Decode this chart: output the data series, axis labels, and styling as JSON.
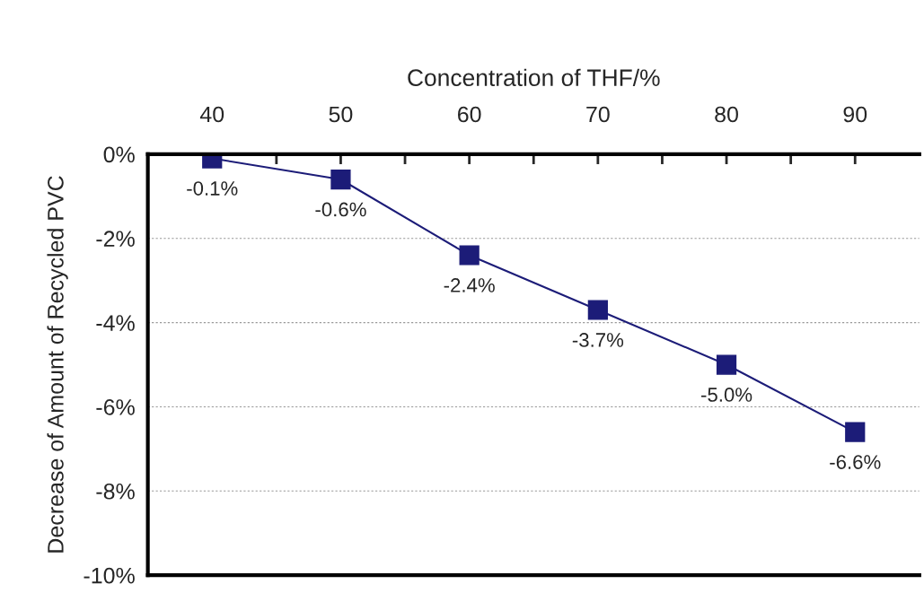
{
  "chart_data": {
    "type": "line",
    "xlabel": "Concentration of THF/%",
    "ylabel": "Decrease of Amount of Recycled PVC",
    "x": [
      40,
      50,
      60,
      70,
      80,
      90
    ],
    "series": [
      {
        "color": "#1c1c78",
        "values": [
          -0.1,
          -0.6,
          -2.4,
          -3.7,
          -5.0,
          -6.6
        ],
        "value_labels": [
          "-0.1%",
          "-0.6%",
          "-2.4%",
          "-3.7%",
          "-5.0%",
          "-6.6%"
        ]
      }
    ],
    "xlim": [
      35,
      95
    ],
    "xticks": [
      40,
      {
        "value": 45,
        "label": null
      },
      50,
      {
        "value": 55,
        "label": null
      },
      60,
      {
        "value": 65,
        "label": null
      },
      70,
      {
        "value": 75,
        "label": null
      },
      80,
      {
        "value": 85,
        "label": null
      },
      90
    ],
    "ylim": [
      -10,
      0
    ],
    "yticks": [
      {
        "value": 0,
        "label": "0%"
      },
      {
        "value": -2,
        "label": "-2%"
      },
      {
        "value": -4,
        "label": "-4%"
      },
      {
        "value": -6,
        "label": "-6%"
      },
      {
        "value": -8,
        "label": "-8%"
      },
      {
        "value": -10,
        "label": "-10%"
      }
    ],
    "grid": "y",
    "marker": "square",
    "line_style": "solid"
  }
}
